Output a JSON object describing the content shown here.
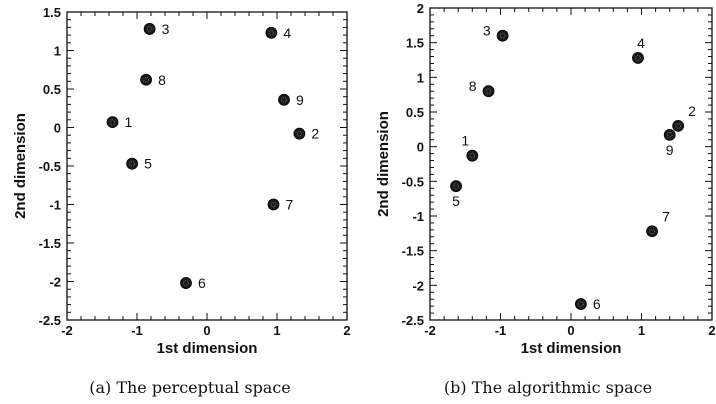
{
  "chart_data": [
    {
      "type": "scatter",
      "caption": "(a) The perceptual space",
      "xlabel": "1st dimension",
      "ylabel": "2nd dimension",
      "xlim": [
        -2,
        2
      ],
      "ylim": [
        -2.5,
        1.5
      ],
      "xticks": [
        "-2",
        "-1",
        "0",
        "1",
        "2"
      ],
      "yticks": [
        "1.5",
        "1",
        "0.5",
        "0",
        "-0.5",
        "-1",
        "-1.5",
        "-2",
        "-2.5"
      ],
      "points": [
        {
          "label": "1",
          "x": -1.35,
          "y": 0.07,
          "label_pos": "right"
        },
        {
          "label": "2",
          "x": 1.32,
          "y": -0.08,
          "label_pos": "right"
        },
        {
          "label": "3",
          "x": -0.82,
          "y": 1.28,
          "label_pos": "right"
        },
        {
          "label": "4",
          "x": 0.92,
          "y": 1.23,
          "label_pos": "right"
        },
        {
          "label": "5",
          "x": -1.07,
          "y": -0.47,
          "label_pos": "right"
        },
        {
          "label": "6",
          "x": -0.3,
          "y": -2.02,
          "label_pos": "right"
        },
        {
          "label": "7",
          "x": 0.95,
          "y": -1.0,
          "label_pos": "right"
        },
        {
          "label": "8",
          "x": -0.87,
          "y": 0.62,
          "label_pos": "right"
        },
        {
          "label": "9",
          "x": 1.1,
          "y": 0.36,
          "label_pos": "right"
        }
      ]
    },
    {
      "type": "scatter",
      "caption": "(b) The algorithmic space",
      "xlabel": "1st dimension",
      "ylabel": "2nd dimension",
      "xlim": [
        -2,
        2
      ],
      "ylim": [
        -2.5,
        2
      ],
      "xticks": [
        "-2",
        "-1",
        "0",
        "1",
        "2"
      ],
      "yticks": [
        "2",
        "1.5",
        "1",
        "0.5",
        "0",
        "-0.5",
        "-1",
        "-1.5",
        "-2",
        "-2.5"
      ],
      "points": [
        {
          "label": "1",
          "x": -1.4,
          "y": -0.13,
          "label_pos": "top-left"
        },
        {
          "label": "2",
          "x": 1.52,
          "y": 0.3,
          "label_pos": "top-right"
        },
        {
          "label": "3",
          "x": -0.97,
          "y": 1.6,
          "label_pos": "left"
        },
        {
          "label": "4",
          "x": 0.95,
          "y": 1.28,
          "label_pos": "top"
        },
        {
          "label": "5",
          "x": -1.63,
          "y": -0.57,
          "label_pos": "bottom"
        },
        {
          "label": "6",
          "x": 0.14,
          "y": -2.27,
          "label_pos": "right"
        },
        {
          "label": "7",
          "x": 1.15,
          "y": -1.22,
          "label_pos": "top-right"
        },
        {
          "label": "8",
          "x": -1.17,
          "y": 0.8,
          "label_pos": "left"
        },
        {
          "label": "9",
          "x": 1.4,
          "y": 0.17,
          "label_pos": "bottom"
        }
      ]
    }
  ]
}
